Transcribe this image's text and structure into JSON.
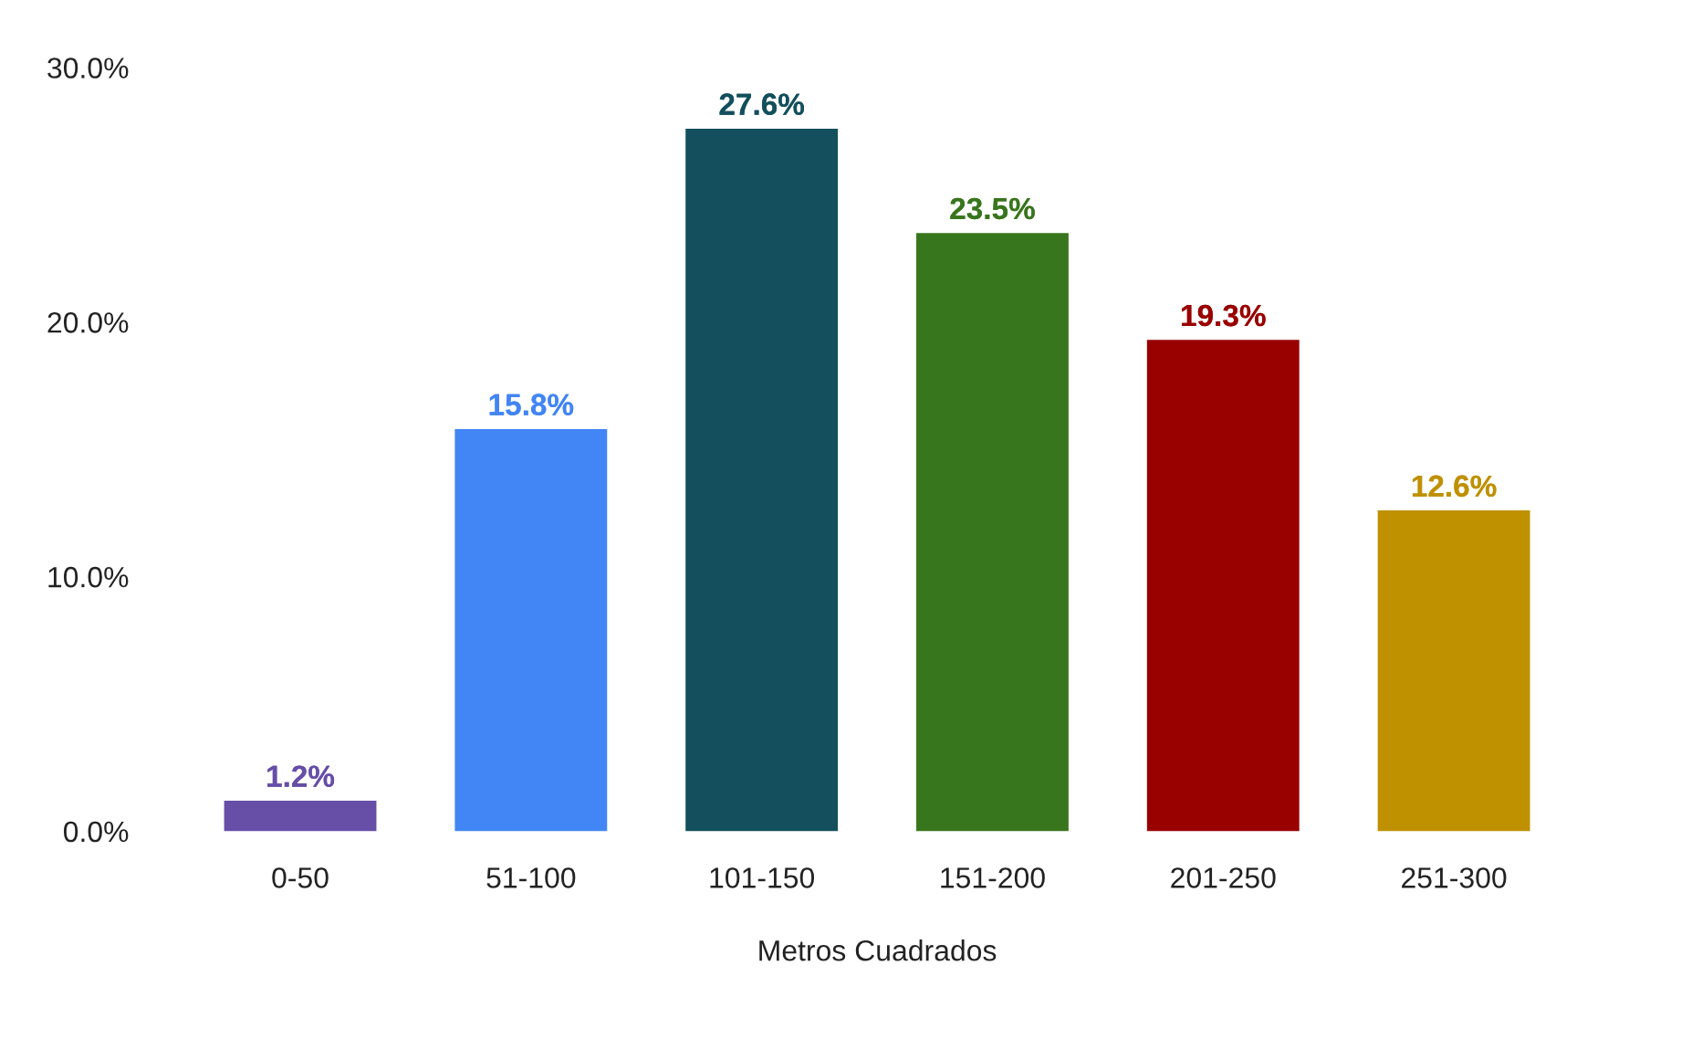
{
  "chart_data": {
    "type": "bar",
    "xlabel": "Metros Cuadrados",
    "categories": [
      "0-50",
      "51-100",
      "101-150",
      "151-200",
      "201-250",
      "251-300"
    ],
    "values": [
      1.2,
      15.8,
      27.6,
      23.5,
      19.3,
      12.6
    ],
    "colors": [
      "#674ea7",
      "#4285f4",
      "#134f5c",
      "#38761d",
      "#990000",
      "#bf9000"
    ],
    "value_labels": [
      "1.2%",
      "15.8%",
      "27.6%",
      "23.5%",
      "19.3%",
      "12.6%"
    ],
    "ylim": [
      0,
      30
    ],
    "yticks": [
      {
        "value": 0,
        "label": "0.0%"
      },
      {
        "value": 10,
        "label": "10.0%"
      },
      {
        "value": 20,
        "label": "20.0%"
      },
      {
        "value": 30,
        "label": "30.0%"
      }
    ],
    "grid": false
  }
}
